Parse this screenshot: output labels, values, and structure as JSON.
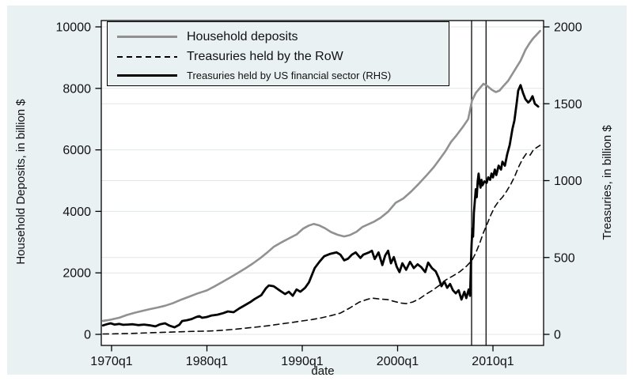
{
  "chart_data": {
    "type": "line",
    "x_axis": {
      "label": "date",
      "ticks": [
        {
          "value": 1970,
          "label": "1970q1"
        },
        {
          "value": 1980,
          "label": "1980q1"
        },
        {
          "value": 1990,
          "label": "1990q1"
        },
        {
          "value": 2000,
          "label": "2000q1"
        },
        {
          "value": 2010,
          "label": "2010q1"
        }
      ]
    },
    "y_left": {
      "label": "Household Deposits, in billion $",
      "range": [
        0,
        10000
      ],
      "ticks": [
        {
          "value": 0,
          "label": "0"
        },
        {
          "value": 2000,
          "label": "2000"
        },
        {
          "value": 4000,
          "label": "4000"
        },
        {
          "value": 6000,
          "label": "6000"
        },
        {
          "value": 8000,
          "label": "8000"
        },
        {
          "value": 10000,
          "label": "10000"
        }
      ]
    },
    "y_right": {
      "label": "Treasuries, in billion $",
      "range": [
        0,
        2000
      ],
      "ticks": [
        {
          "value": 0,
          "label": "0"
        },
        {
          "value": 500,
          "label": "500"
        },
        {
          "value": 1000,
          "label": "1000"
        },
        {
          "value": 1500,
          "label": "1500"
        },
        {
          "value": 2000,
          "label": "2000"
        }
      ]
    },
    "vlines": [
      2007.76,
      2009.28
    ],
    "colors": {
      "background": "#e9f1f3",
      "plot_background": "#ffffff",
      "grid": "#dfe7ea",
      "frame": "#000000"
    },
    "legend_position": "top-left",
    "grid": true,
    "series": [
      {
        "name": "Household deposits",
        "axis": "left",
        "style": "solid",
        "color": "#919191",
        "width": 2.6,
        "points": [
          [
            1969.1,
            440
          ],
          [
            1969.6,
            460
          ],
          [
            1970.1,
            490
          ],
          [
            1970.8,
            540
          ],
          [
            1971.6,
            630
          ],
          [
            1972.4,
            700
          ],
          [
            1973.2,
            760
          ],
          [
            1974.0,
            820
          ],
          [
            1974.8,
            872
          ],
          [
            1975.6,
            930
          ],
          [
            1976.4,
            1010
          ],
          [
            1977.3,
            1128
          ],
          [
            1978.1,
            1220
          ],
          [
            1979.0,
            1330
          ],
          [
            1980.0,
            1430
          ],
          [
            1980.8,
            1560
          ],
          [
            1981.6,
            1700
          ],
          [
            1982.4,
            1840
          ],
          [
            1983.2,
            1990
          ],
          [
            1984.0,
            2140
          ],
          [
            1984.8,
            2300
          ],
          [
            1985.6,
            2480
          ],
          [
            1986.4,
            2680
          ],
          [
            1987.0,
            2846
          ],
          [
            1987.8,
            2990
          ],
          [
            1988.6,
            3120
          ],
          [
            1989.4,
            3250
          ],
          [
            1990.1,
            3440
          ],
          [
            1990.7,
            3540
          ],
          [
            1991.2,
            3590
          ],
          [
            1991.8,
            3540
          ],
          [
            1992.4,
            3450
          ],
          [
            1993.0,
            3330
          ],
          [
            1993.7,
            3240
          ],
          [
            1994.4,
            3185
          ],
          [
            1995.0,
            3230
          ],
          [
            1995.7,
            3340
          ],
          [
            1996.3,
            3490
          ],
          [
            1997.0,
            3590
          ],
          [
            1997.5,
            3660
          ],
          [
            1998.2,
            3790
          ],
          [
            1999.0,
            3990
          ],
          [
            1999.8,
            4280
          ],
          [
            2000.6,
            4420
          ],
          [
            2001.4,
            4640
          ],
          [
            2002.2,
            4890
          ],
          [
            2003.0,
            5160
          ],
          [
            2003.8,
            5440
          ],
          [
            2004.4,
            5692
          ],
          [
            2005.0,
            5950
          ],
          [
            2005.6,
            6256
          ],
          [
            2006.2,
            6480
          ],
          [
            2006.9,
            6769
          ],
          [
            2007.4,
            7000
          ],
          [
            2007.8,
            7600
          ],
          [
            2008.2,
            7850
          ],
          [
            2008.6,
            8000
          ],
          [
            2009.0,
            8150
          ],
          [
            2009.4,
            8080
          ],
          [
            2009.9,
            7950
          ],
          [
            2010.3,
            7880
          ],
          [
            2010.7,
            7930
          ],
          [
            2011.1,
            8080
          ],
          [
            2011.6,
            8250
          ],
          [
            2012.0,
            8450
          ],
          [
            2012.5,
            8700
          ],
          [
            2012.9,
            8900
          ],
          [
            2013.4,
            9250
          ],
          [
            2013.8,
            9450
          ],
          [
            2014.2,
            9620
          ],
          [
            2014.6,
            9750
          ],
          [
            2014.95,
            9870
          ]
        ]
      },
      {
        "name": "Treasuries held by the RoW",
        "axis": "left",
        "style": "dashed",
        "color": "#0a0a0a",
        "width": 1.6,
        "points": [
          [
            1969.1,
            12
          ],
          [
            1970,
            16
          ],
          [
            1971,
            22
          ],
          [
            1972,
            30
          ],
          [
            1973,
            42
          ],
          [
            1974,
            52
          ],
          [
            1975,
            62
          ],
          [
            1976,
            72
          ],
          [
            1977,
            82
          ],
          [
            1978,
            92
          ],
          [
            1979,
            100
          ],
          [
            1980,
            105
          ],
          [
            1981,
            122
          ],
          [
            1982,
            142
          ],
          [
            1983,
            168
          ],
          [
            1984,
            200
          ],
          [
            1985,
            231
          ],
          [
            1986,
            266
          ],
          [
            1987,
            305
          ],
          [
            1988,
            350
          ],
          [
            1989,
            392
          ],
          [
            1990,
            436
          ],
          [
            1991,
            482
          ],
          [
            1992,
            538
          ],
          [
            1993,
            610
          ],
          [
            1994,
            692
          ],
          [
            1995,
            860
          ],
          [
            1996,
            1051
          ],
          [
            1996.7,
            1125
          ],
          [
            1997.3,
            1179
          ],
          [
            1998,
            1155
          ],
          [
            1999,
            1128
          ],
          [
            1999.6,
            1075
          ],
          [
            2000.3,
            1020
          ],
          [
            2000.9,
            1000
          ],
          [
            2001.6,
            1055
          ],
          [
            2002.3,
            1160
          ],
          [
            2003,
            1310
          ],
          [
            2003.7,
            1440
          ],
          [
            2004.4,
            1600
          ],
          [
            2005.1,
            1780
          ],
          [
            2005.8,
            1900
          ],
          [
            2006.5,
            2030
          ],
          [
            2007.2,
            2210
          ],
          [
            2007.8,
            2410
          ],
          [
            2008.2,
            2650
          ],
          [
            2008.6,
            2950
          ],
          [
            2009.0,
            3310
          ],
          [
            2009.35,
            3560
          ],
          [
            2009.8,
            3900
          ],
          [
            2010.2,
            4150
          ],
          [
            2010.6,
            4330
          ],
          [
            2011.0,
            4460
          ],
          [
            2011.4,
            4640
          ],
          [
            2011.9,
            4900
          ],
          [
            2012.3,
            5150
          ],
          [
            2012.7,
            5450
          ],
          [
            2013.1,
            5700
          ],
          [
            2013.5,
            5880
          ],
          [
            2013.9,
            5830
          ],
          [
            2014.2,
            5980
          ],
          [
            2014.5,
            6060
          ],
          [
            2014.95,
            6150
          ]
        ]
      },
      {
        "name": "Treasuries held by US financial sector (RHS)",
        "axis": "right",
        "style": "solid",
        "color": "#000000",
        "width": 2.8,
        "points": [
          [
            1969.1,
            58
          ],
          [
            1969.5,
            66
          ],
          [
            1969.9,
            72
          ],
          [
            1970.3,
            64
          ],
          [
            1970.8,
            68
          ],
          [
            1971.2,
            62
          ],
          [
            1971.7,
            64
          ],
          [
            1972.2,
            66
          ],
          [
            1972.8,
            60
          ],
          [
            1973.4,
            64
          ],
          [
            1974.1,
            58
          ],
          [
            1974.6,
            52
          ],
          [
            1975.1,
            66
          ],
          [
            1975.6,
            72
          ],
          [
            1976.1,
            56
          ],
          [
            1976.6,
            46
          ],
          [
            1977.1,
            62
          ],
          [
            1977.4,
            87
          ],
          [
            1977.9,
            92
          ],
          [
            1978.4,
            100
          ],
          [
            1978.9,
            113
          ],
          [
            1979.2,
            118
          ],
          [
            1979.5,
            108
          ],
          [
            1980.0,
            113
          ],
          [
            1980.5,
            123
          ],
          [
            1981.1,
            128
          ],
          [
            1981.7,
            138
          ],
          [
            1982.2,
            149
          ],
          [
            1982.8,
            144
          ],
          [
            1983.4,
            169
          ],
          [
            1984.0,
            190
          ],
          [
            1984.6,
            212
          ],
          [
            1985.0,
            230
          ],
          [
            1985.7,
            255
          ],
          [
            1986.2,
            300
          ],
          [
            1986.5,
            318
          ],
          [
            1987.0,
            313
          ],
          [
            1987.6,
            287
          ],
          [
            1988.2,
            262
          ],
          [
            1988.6,
            277
          ],
          [
            1989.0,
            251
          ],
          [
            1989.4,
            292
          ],
          [
            1989.8,
            277
          ],
          [
            1990.3,
            303
          ],
          [
            1990.7,
            338
          ],
          [
            1991.3,
            431
          ],
          [
            1991.8,
            472
          ],
          [
            1992.3,
            508
          ],
          [
            1992.9,
            523
          ],
          [
            1993.6,
            533
          ],
          [
            1994.0,
            518
          ],
          [
            1994.4,
            482
          ],
          [
            1994.8,
            492
          ],
          [
            1995.2,
            518
          ],
          [
            1995.6,
            533
          ],
          [
            1996.1,
            497
          ],
          [
            1996.4,
            518
          ],
          [
            1997.0,
            533
          ],
          [
            1997.3,
            544
          ],
          [
            1997.6,
            490
          ],
          [
            1998.0,
            533
          ],
          [
            1998.4,
            451
          ],
          [
            1998.7,
            513
          ],
          [
            1999.0,
            544
          ],
          [
            1999.3,
            462
          ],
          [
            1999.6,
            503
          ],
          [
            1999.9,
            441
          ],
          [
            2000.2,
            405
          ],
          [
            2000.5,
            462
          ],
          [
            2000.9,
            420
          ],
          [
            2001.3,
            472
          ],
          [
            2001.7,
            431
          ],
          [
            2002.1,
            456
          ],
          [
            2002.5,
            436
          ],
          [
            2002.9,
            405
          ],
          [
            2003.2,
            467
          ],
          [
            2003.6,
            431
          ],
          [
            2004.0,
            410
          ],
          [
            2004.3,
            369
          ],
          [
            2004.6,
            313
          ],
          [
            2004.9,
            344
          ],
          [
            2005.2,
            303
          ],
          [
            2005.5,
            328
          ],
          [
            2005.8,
            287
          ],
          [
            2006.1,
            267
          ],
          [
            2006.4,
            287
          ],
          [
            2006.7,
            226
          ],
          [
            2007.0,
            277
          ],
          [
            2007.2,
            236
          ],
          [
            2007.45,
            292
          ],
          [
            2007.6,
            251
          ],
          [
            2007.7,
            482
          ],
          [
            2007.76,
            585
          ],
          [
            2007.85,
            687
          ],
          [
            2007.92,
            636
          ],
          [
            2008.0,
            790
          ],
          [
            2008.1,
            867
          ],
          [
            2008.2,
            944
          ],
          [
            2008.3,
            892
          ],
          [
            2008.4,
            995
          ],
          [
            2008.5,
            1046
          ],
          [
            2008.6,
            985
          ],
          [
            2008.7,
            954
          ],
          [
            2008.8,
            1005
          ],
          [
            2008.9,
            969
          ],
          [
            2009.1,
            995
          ],
          [
            2009.34,
            985
          ],
          [
            2009.5,
            1021
          ],
          [
            2009.7,
            1005
          ],
          [
            2009.85,
            1046
          ],
          [
            2010.0,
            1021
          ],
          [
            2010.2,
            1072
          ],
          [
            2010.35,
            1036
          ],
          [
            2010.6,
            1097
          ],
          [
            2010.85,
            1072
          ],
          [
            2011.0,
            1123
          ],
          [
            2011.25,
            1097
          ],
          [
            2011.5,
            1174
          ],
          [
            2011.75,
            1230
          ],
          [
            2012.05,
            1338
          ],
          [
            2012.25,
            1390
          ],
          [
            2012.5,
            1508
          ],
          [
            2012.65,
            1585
          ],
          [
            2012.9,
            1621
          ],
          [
            2013.15,
            1570
          ],
          [
            2013.4,
            1530
          ],
          [
            2013.7,
            1508
          ],
          [
            2013.9,
            1520
          ],
          [
            2014.15,
            1549
          ],
          [
            2014.4,
            1500
          ],
          [
            2014.75,
            1482
          ]
        ]
      }
    ]
  }
}
